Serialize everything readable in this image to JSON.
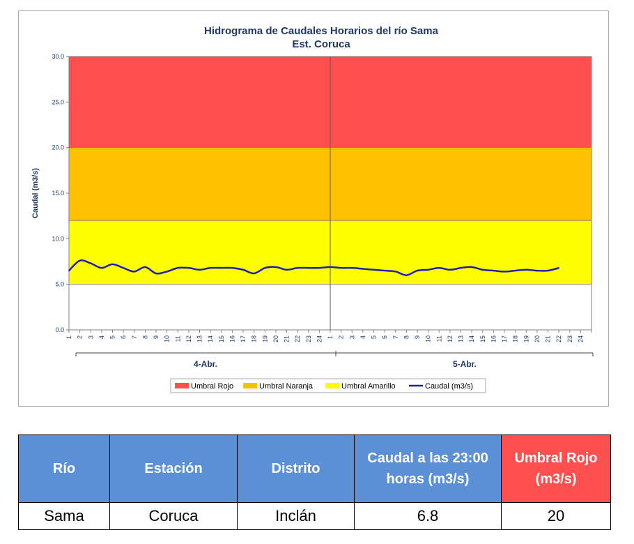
{
  "chart_data": {
    "type": "line",
    "title": "Hidrograma de Caudales Horarios del río Sama",
    "subtitle": "Est. Coruca",
    "ylabel": "Caudal (m3/s)",
    "ylim": [
      0,
      30
    ],
    "yticks": [
      "0.0",
      "5.0",
      "10.0",
      "15.0",
      "20.0",
      "25.0",
      "30.0"
    ],
    "xtick_labels": [
      "1",
      "2",
      "3",
      "4",
      "5",
      "6",
      "7",
      "8",
      "9",
      "10",
      "11",
      "12",
      "13",
      "14",
      "15",
      "16",
      "17",
      "18",
      "19",
      "20",
      "21",
      "22",
      "23",
      "24"
    ],
    "days": [
      "4-Abr.",
      "5-Abr."
    ],
    "bands": [
      {
        "name": "Umbral Amarillo",
        "from": 5,
        "to": 12,
        "color": "#ffff00"
      },
      {
        "name": "Umbral Naranja",
        "from": 12,
        "to": 20,
        "color": "#ffc000"
      },
      {
        "name": "Umbral Rojo",
        "from": 20,
        "to": 30,
        "color": "#ff5050"
      }
    ],
    "series": [
      {
        "name": "Caudal (m3/s)",
        "color": "#1f1fa8",
        "values": [
          6.5,
          7.6,
          7.3,
          6.8,
          7.2,
          6.8,
          6.4,
          6.9,
          6.2,
          6.4,
          6.8,
          6.8,
          6.6,
          6.8,
          6.8,
          6.8,
          6.6,
          6.2,
          6.8,
          6.9,
          6.6,
          6.8,
          6.8,
          6.8,
          6.9,
          6.8,
          6.8,
          6.7,
          6.6,
          6.5,
          6.4,
          6.0,
          6.5,
          6.6,
          6.8,
          6.6,
          6.8,
          6.9,
          6.6,
          6.5,
          6.4,
          6.5,
          6.6,
          6.5,
          6.5,
          6.8
        ]
      }
    ],
    "legend": [
      {
        "label": "Umbral Rojo",
        "color": "#ff5050",
        "kind": "box"
      },
      {
        "label": "Umbral Naranja",
        "color": "#ffc000",
        "kind": "box"
      },
      {
        "label": "Umbral Amarillo",
        "color": "#ffff00",
        "kind": "box"
      },
      {
        "label": "Caudal (m3/s)",
        "color": "#1f1fa8",
        "kind": "line"
      }
    ],
    "legend_position": "bottom",
    "grid": false
  },
  "table": {
    "headers": [
      "Río",
      "Estación",
      "Distrito",
      "Caudal a las 23:00 horas (m3/s)",
      "Umbral  Rojo (m3/s)"
    ],
    "row": [
      "Sama",
      "Coruca",
      "Inclán",
      "6.8",
      "20"
    ]
  }
}
